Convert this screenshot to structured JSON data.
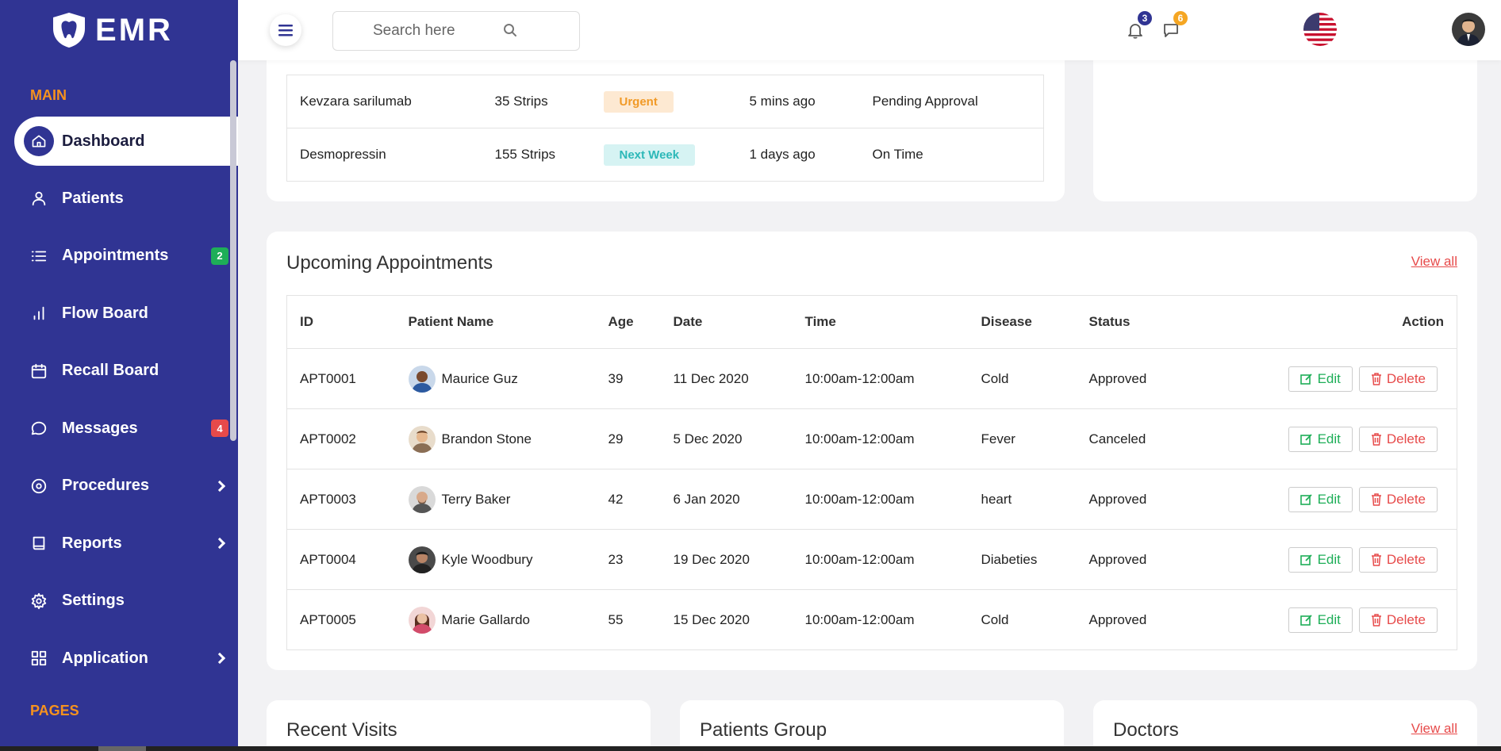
{
  "brand": {
    "name": "EMR"
  },
  "sidebar": {
    "section_main": "MAIN",
    "section_pages": "PAGES",
    "items": [
      {
        "label": "Dashboard",
        "icon": "home-icon",
        "active": true
      },
      {
        "label": "Patients",
        "icon": "user-icon"
      },
      {
        "label": "Appointments",
        "icon": "list-icon",
        "badge": "2",
        "badge_color": "#1eae58"
      },
      {
        "label": "Flow Board",
        "icon": "bar-chart-icon"
      },
      {
        "label": "Recall Board",
        "icon": "calendar-icon"
      },
      {
        "label": "Messages",
        "icon": "message-icon",
        "badge": "4",
        "badge_color": "#e74a4a"
      },
      {
        "label": "Procedures",
        "icon": "target-icon",
        "submenu": true
      },
      {
        "label": "Reports",
        "icon": "book-icon",
        "submenu": true
      },
      {
        "label": "Settings",
        "icon": "gear-icon"
      },
      {
        "label": "Application",
        "icon": "grid-icon",
        "submenu": true
      }
    ]
  },
  "header": {
    "search_placeholder": "Search here",
    "notifications_count": "3",
    "messages_count": "6"
  },
  "medications": {
    "rows": [
      {
        "name": "Kevzara sarilumab",
        "qty": "35 Strips",
        "tag": "Urgent",
        "time": "5 mins ago",
        "status": "Pending Approval"
      },
      {
        "name": "Desmopressin",
        "qty": "155 Strips",
        "tag": "Next Week",
        "time": "1 days ago",
        "status": "On Time"
      }
    ]
  },
  "appointments": {
    "title": "Upcoming Appointments",
    "view_all": "View all",
    "columns": {
      "id": "ID",
      "patient": "Patient Name",
      "age": "Age",
      "date": "Date",
      "time": "Time",
      "disease": "Disease",
      "status": "Status",
      "action": "Action"
    },
    "edit_label": "Edit",
    "delete_label": "Delete",
    "rows": [
      {
        "id": "APT0001",
        "patient": "Maurice Guz",
        "age": "39",
        "date": "11 Dec 2020",
        "time": "10:00am-12:00am",
        "disease": "Cold",
        "status": "Approved"
      },
      {
        "id": "APT0002",
        "patient": "Brandon Stone",
        "age": "29",
        "date": "5 Dec 2020",
        "time": "10:00am-12:00am",
        "disease": "Fever",
        "status": "Canceled"
      },
      {
        "id": "APT0003",
        "patient": "Terry Baker",
        "age": "42",
        "date": "6 Jan 2020",
        "time": "10:00am-12:00am",
        "disease": "heart",
        "status": "Approved"
      },
      {
        "id": "APT0004",
        "patient": "Kyle Woodbury",
        "age": "23",
        "date": "19 Dec 2020",
        "time": "10:00am-12:00am",
        "disease": "Diabeties",
        "status": "Approved"
      },
      {
        "id": "APT0005",
        "patient": "Marie Gallardo",
        "age": "55",
        "date": "15 Dec 2020",
        "time": "10:00am-12:00am",
        "disease": "Cold",
        "status": "Approved"
      }
    ]
  },
  "bottom_cards": {
    "recent_visits": "Recent Visits",
    "patients_group": "Patients Group",
    "doctors": "Doctors",
    "doctors_view_all": "View all"
  },
  "colors": {
    "sidebar": "#303493",
    "accent_orange": "#f6921e",
    "green": "#1eae58",
    "red": "#e74a4a"
  }
}
